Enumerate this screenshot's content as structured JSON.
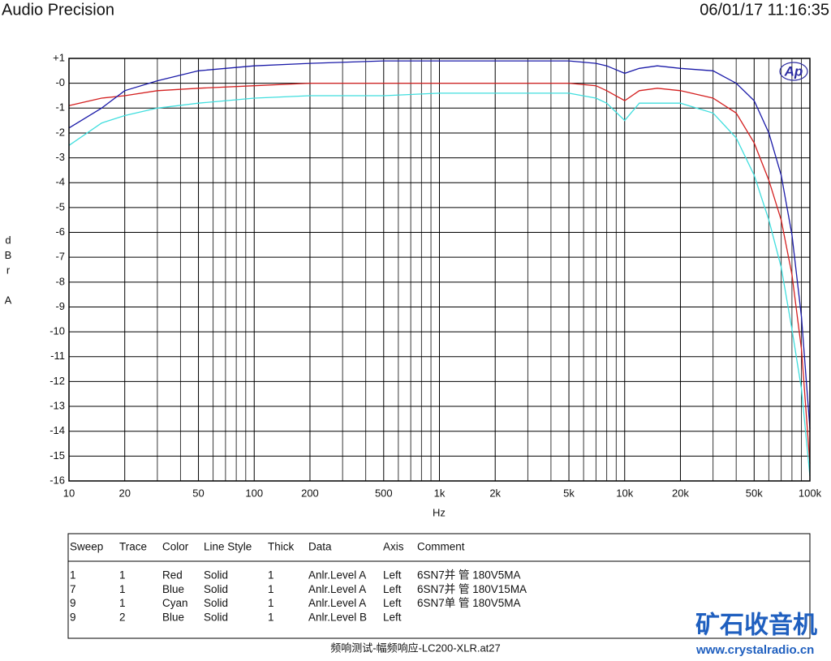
{
  "header": {
    "title": "Audio Precision",
    "timestamp": "06/01/17 11:16:35"
  },
  "logo": "Ap",
  "chart_data": {
    "type": "line",
    "xlabel": "Hz",
    "ylabel": "dBr A",
    "log_x": true,
    "grid": true,
    "xlim": [
      10,
      100000
    ],
    "ylim": [
      -16,
      1
    ],
    "xticks": [
      10,
      20,
      50,
      100,
      200,
      500,
      {
        "value": 1000,
        "label": "1k"
      },
      {
        "value": 2000,
        "label": "2k"
      },
      {
        "value": 5000,
        "label": "5k"
      },
      {
        "value": 10000,
        "label": "10k"
      },
      {
        "value": 20000,
        "label": "20k"
      },
      {
        "value": 50000,
        "label": "50k"
      },
      {
        "value": 100000,
        "label": "100k"
      }
    ],
    "yticks": [
      {
        "value": 1,
        "label": "+1"
      },
      {
        "value": 0,
        "label": "-0"
      },
      -1,
      -2,
      -3,
      -4,
      -5,
      -6,
      -7,
      -8,
      -9,
      -10,
      -11,
      -12,
      -13,
      -14,
      -15,
      -16
    ],
    "x": [
      10,
      15,
      20,
      30,
      50,
      100,
      200,
      500,
      1000,
      2000,
      5000,
      7000,
      8000,
      10000,
      12000,
      15000,
      20000,
      30000,
      40000,
      50000,
      60000,
      70000,
      80000,
      90000,
      100000
    ],
    "series": [
      {
        "color": "#d42020",
        "values": [
          -0.9,
          -0.6,
          -0.5,
          -0.3,
          -0.2,
          -0.1,
          0.0,
          0.0,
          0.0,
          0.0,
          0.0,
          -0.1,
          -0.3,
          -0.7,
          -0.3,
          -0.2,
          -0.3,
          -0.6,
          -1.2,
          -2.4,
          -3.9,
          -5.5,
          -7.7,
          -10.7,
          -15.3
        ]
      },
      {
        "color": "#1a1aa8",
        "values": [
          -1.8,
          -1.0,
          -0.3,
          0.1,
          0.5,
          0.7,
          0.8,
          0.9,
          0.9,
          0.9,
          0.9,
          0.8,
          0.7,
          0.4,
          0.6,
          0.7,
          0.6,
          0.5,
          0.0,
          -0.7,
          -2.0,
          -3.7,
          -6.1,
          -9.4,
          -13.9
        ]
      },
      {
        "color": "#40dede",
        "values": [
          -2.5,
          -1.6,
          -1.3,
          -1.0,
          -0.8,
          -0.6,
          -0.5,
          -0.5,
          -0.4,
          -0.4,
          -0.4,
          -0.6,
          -0.8,
          -1.5,
          -0.8,
          -0.8,
          -0.8,
          -1.2,
          -2.2,
          -3.7,
          -5.5,
          -7.4,
          -9.9,
          -12.3,
          -15.8
        ]
      }
    ]
  },
  "table": {
    "headers": [
      "Sweep",
      "Trace",
      "Color",
      "Line Style",
      "Thick",
      "Data",
      "Axis",
      "Comment"
    ],
    "rows": [
      [
        "1",
        "1",
        "Red",
        "Solid",
        "1",
        "Anlr.Level A",
        "Left",
        "6SN7并 管 180V5MA"
      ],
      [
        "7",
        "1",
        "Blue",
        "Solid",
        "1",
        "Anlr.Level A",
        "Left",
        "6SN7并 管 180V15MA"
      ],
      [
        "9",
        "1",
        "Cyan",
        "Solid",
        "1",
        "Anlr.Level A",
        "Left",
        "6SN7单 管 180V5MA"
      ],
      [
        "9",
        "2",
        "Blue",
        "Solid",
        "1",
        "Anlr.Level B",
        "Left"
      ]
    ]
  },
  "footer": "频响测试-幅频响应-LC200-XLR.at27",
  "watermark": {
    "name": "矿石收音机",
    "url": "www.crystalradio.cn"
  }
}
